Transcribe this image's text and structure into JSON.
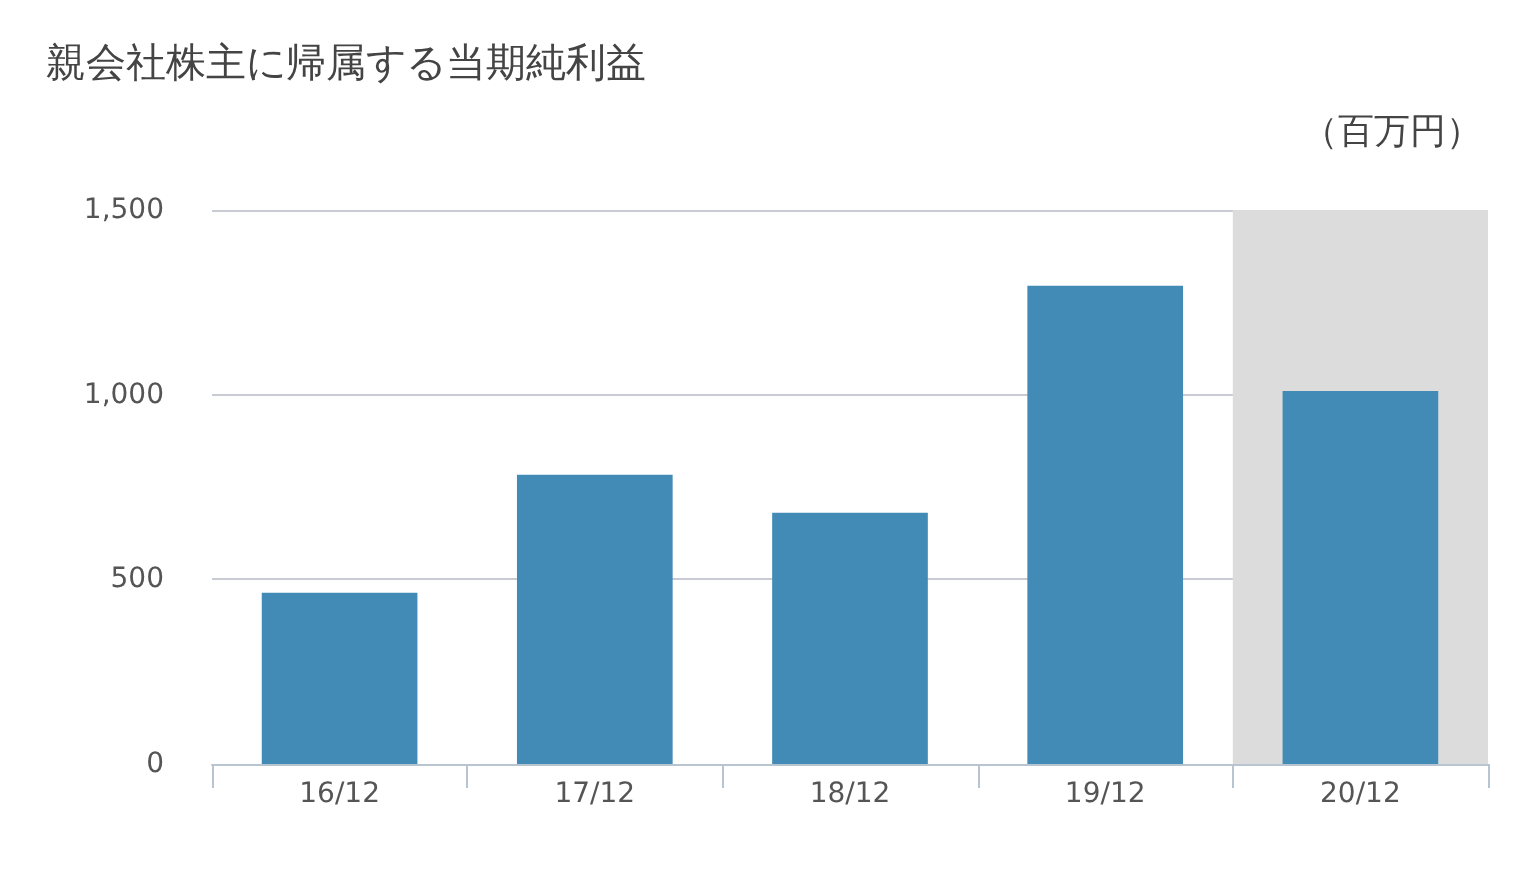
{
  "chart_data": {
    "type": "bar",
    "title": "親会社株主に帰属する当期純利益",
    "ylabel": "（百万円）",
    "categories": [
      "16/12",
      "17/12",
      "18/12",
      "19/12",
      "20/12"
    ],
    "values": [
      464,
      783,
      680,
      1295,
      1010
    ],
    "color": "#428bb6",
    "ylim": [
      0,
      1500
    ],
    "yticks": [
      0,
      500,
      {
        "value": 1000,
        "label": "1,000"
      },
      {
        "value": 1500,
        "label": "1,500"
      }
    ],
    "grid": "y",
    "bands": [
      {
        "axis": "x",
        "from": "20/12",
        "to": "20/12",
        "color": "#dcdcdc"
      }
    ]
  }
}
